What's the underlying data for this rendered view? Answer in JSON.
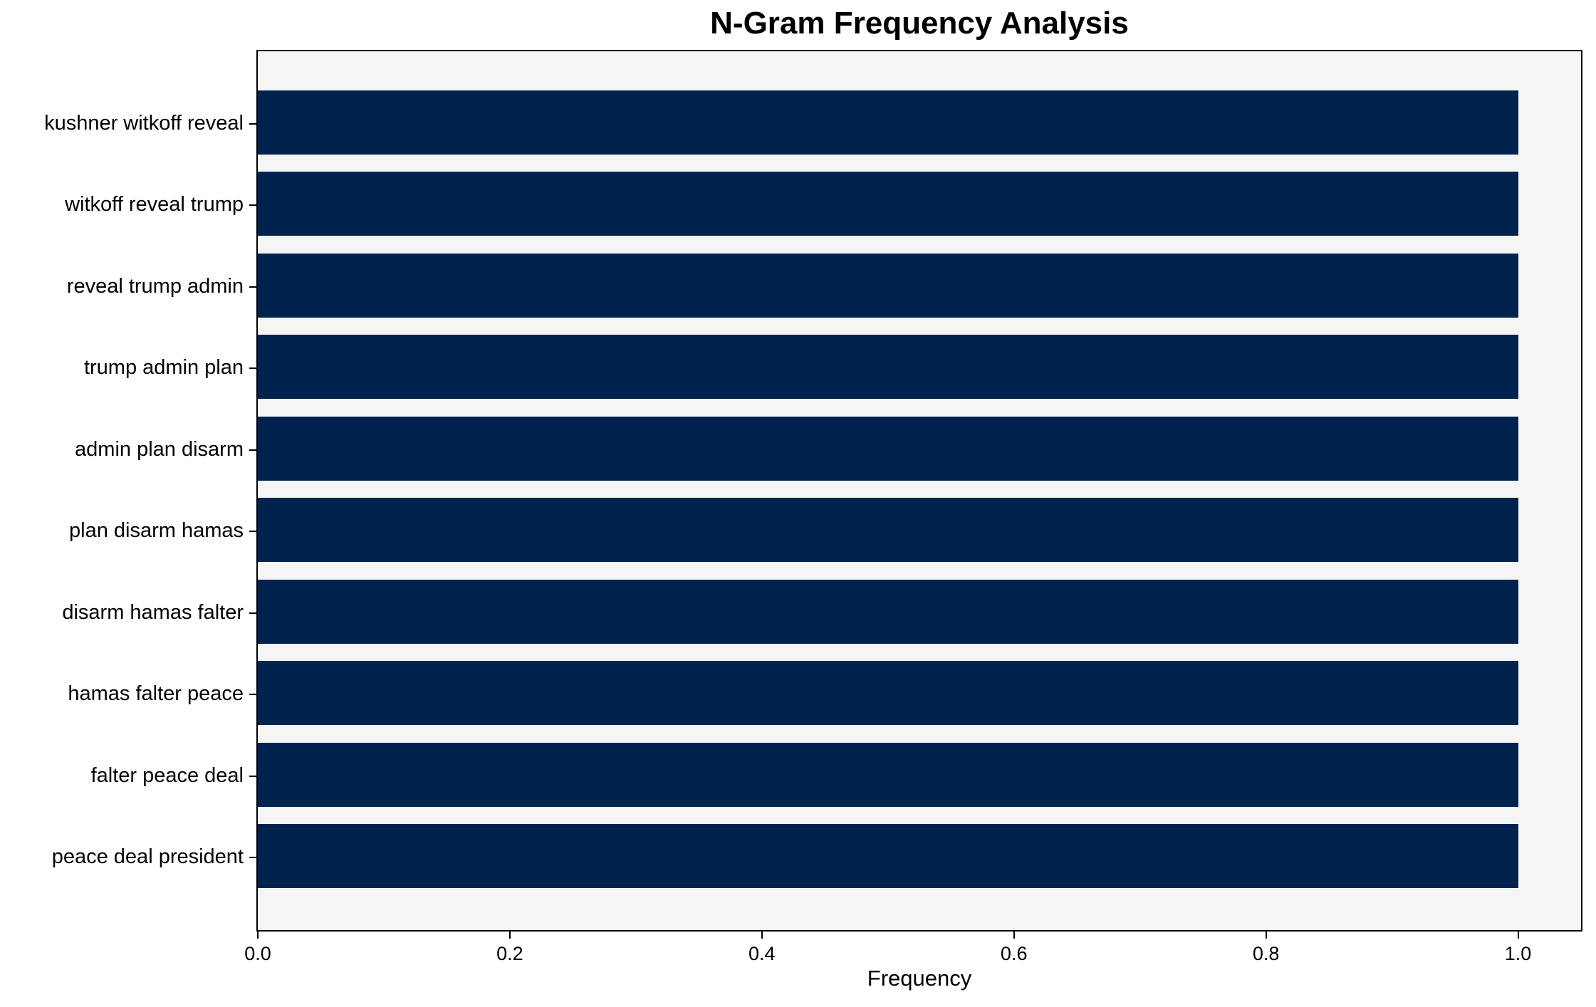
{
  "chart_data": {
    "type": "bar",
    "orientation": "horizontal",
    "title": "N-Gram Frequency Analysis",
    "xlabel": "Frequency",
    "ylabel": "",
    "categories": [
      "kushner witkoff reveal",
      "witkoff reveal trump",
      "reveal trump admin",
      "trump admin plan",
      "admin plan disarm",
      "plan disarm hamas",
      "disarm hamas falter",
      "hamas falter peace",
      "falter peace deal",
      "peace deal president"
    ],
    "values": [
      1.0,
      1.0,
      1.0,
      1.0,
      1.0,
      1.0,
      1.0,
      1.0,
      1.0,
      1.0
    ],
    "xticks": [
      0.0,
      0.2,
      0.4,
      0.6,
      0.8,
      1.0
    ],
    "xtick_labels": [
      "0.0",
      "0.2",
      "0.4",
      "0.6",
      "0.8",
      "1.0"
    ],
    "xlim": [
      0,
      1.05
    ],
    "grid": false,
    "legend_position": "none",
    "colors": {
      "bar": "#00234E",
      "plot_background": "#f5f5f5",
      "figure_background": "#ffffff",
      "spine": "#000000",
      "text": "#000000"
    }
  }
}
